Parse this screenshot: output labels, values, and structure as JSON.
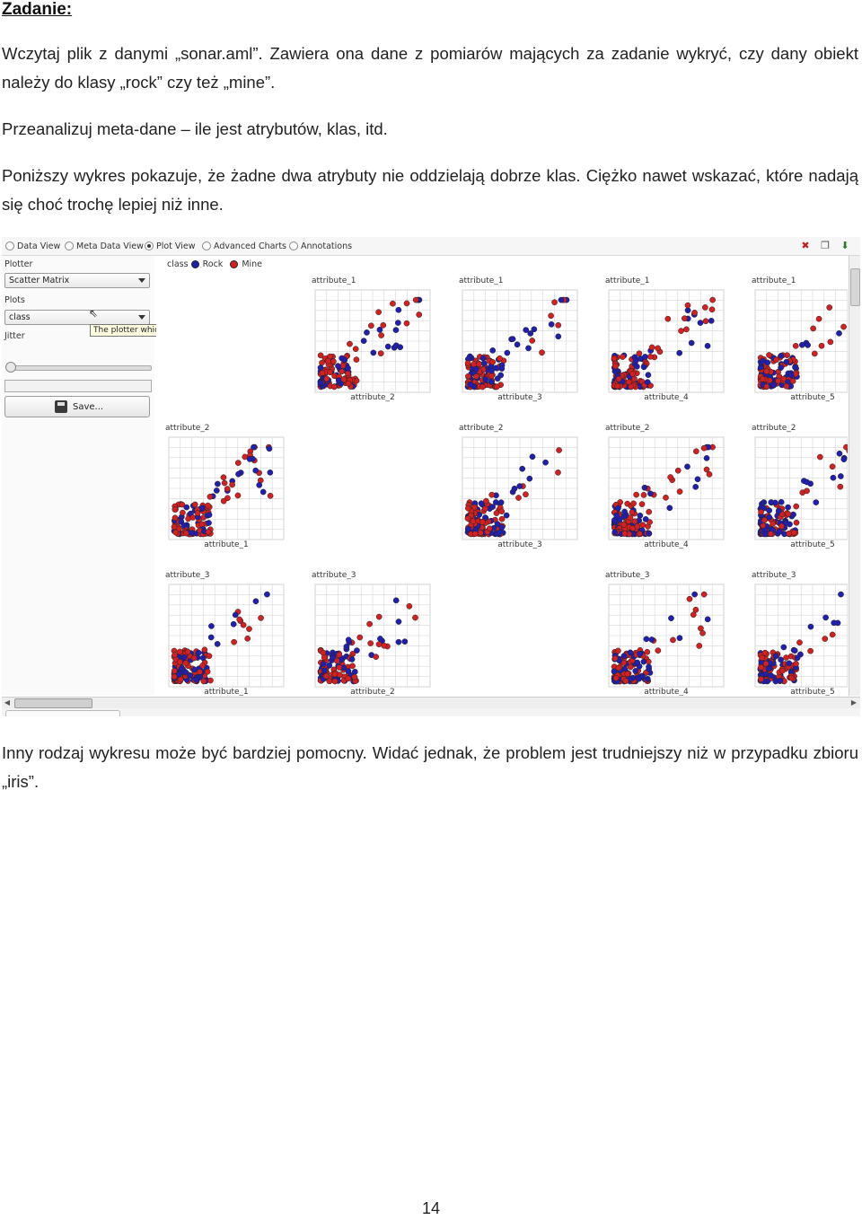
{
  "heading": "Zadanie:",
  "paragraphs": {
    "p1": "Wczytaj plik z danymi „sonar.aml”. Zawiera ona dane z pomiarów mających za zadanie wykryć, czy dany obiekt należy do klasy „rock” czy też „mine”.",
    "p2": "Przeanalizuj meta-dane – ile jest atrybutów, klas, itd.",
    "p3": "Poniższy wykres pokazuje, że żadne dwa atrybuty nie oddzielają dobrze klas. Ciężko nawet wskazać, które nadają się choć trochę lepiej niż inne.",
    "p4": "Inny rodzaj wykresu może być bardziej pomocny. Widać jednak, że problem jest trudniejszy niż w przypadku zbioru „iris”."
  },
  "page_number": "14",
  "screenshot": {
    "tabs": [
      {
        "label": "Data View",
        "selected": false
      },
      {
        "label": "Meta Data View",
        "selected": false
      },
      {
        "label": "Plot View",
        "selected": true
      },
      {
        "label": "Advanced Charts",
        "selected": false
      },
      {
        "label": "Annotations",
        "selected": false
      }
    ],
    "toolbar_icons": [
      "close-red-icon",
      "copy-window-icon",
      "export-icon"
    ],
    "left_panel": {
      "plotter_label": "Plotter",
      "plotter_value": "Scatter Matrix",
      "tooltip": "The plotter which should be used for displaying data.",
      "plots_label": "Plots",
      "plots_value": "class",
      "jitter_label": "Jitter",
      "save_label": "Save..."
    },
    "legend": {
      "title": "class",
      "classes": [
        {
          "name": "Rock",
          "color": "#1f1fb0"
        },
        {
          "name": "Mine",
          "color": "#d42020"
        }
      ]
    },
    "colors": {
      "rock": "#1f1fb0",
      "mine": "#d42020"
    },
    "matrix": [
      {
        "y": "attribute_1",
        "cells": [
          null,
          "attribute_2",
          "attribute_3",
          "attribute_4",
          "attribute_5"
        ]
      },
      {
        "y": "attribute_2",
        "cells": [
          "attribute_1",
          null,
          "attribute_3",
          "attribute_4",
          "attribute_5"
        ]
      },
      {
        "y": "attribute_3",
        "cells": [
          "attribute_1",
          "attribute_2",
          null,
          "attribute_4",
          "attribute_5"
        ]
      }
    ]
  }
}
